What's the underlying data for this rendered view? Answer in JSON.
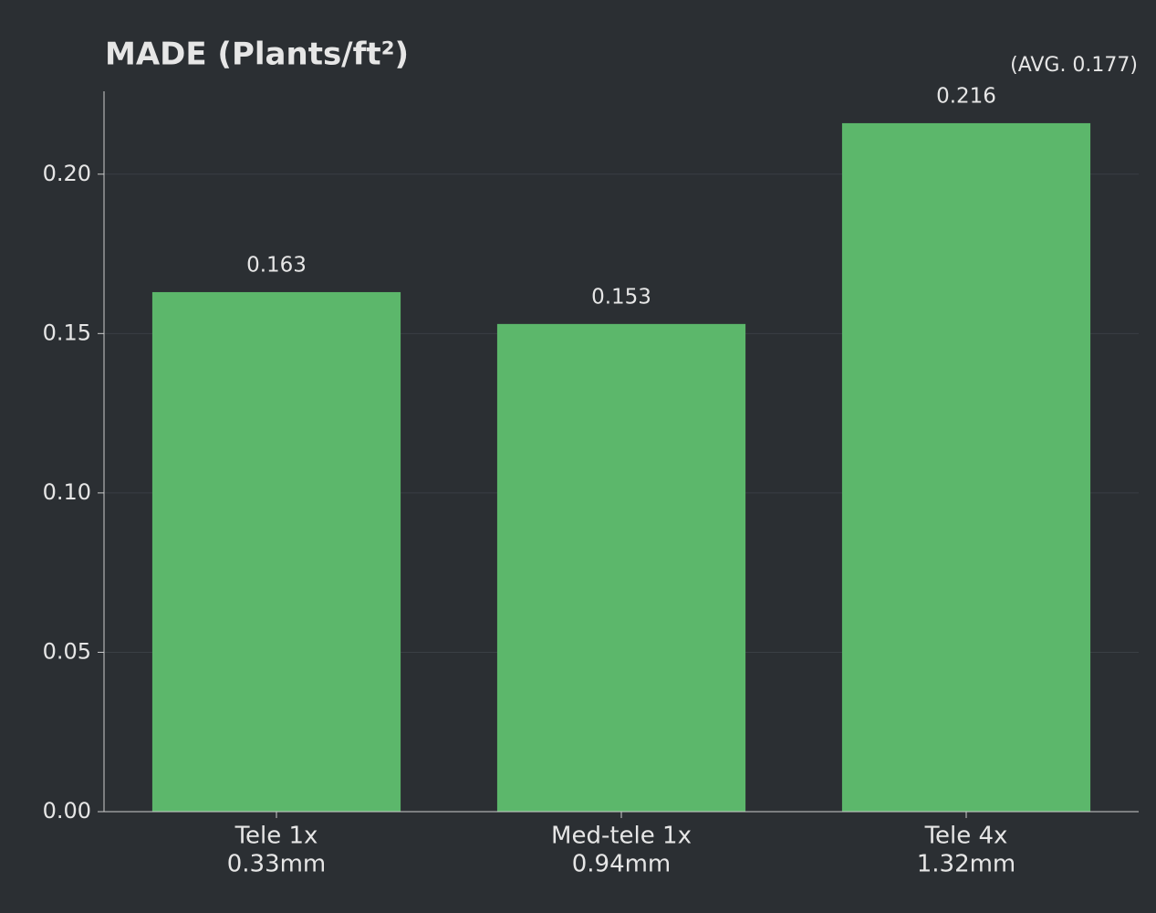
{
  "chart_data": {
    "type": "bar",
    "title": "MADE (Plants/ft²)",
    "subtitle": "(AVG. 0.177)",
    "categories": [
      [
        "Tele 1x",
        "0.33mm"
      ],
      [
        "Med-tele 1x",
        "0.94mm"
      ],
      [
        "Tele 4x",
        "1.32mm"
      ]
    ],
    "values": [
      0.163,
      0.153,
      0.216
    ],
    "color": "#5cb76b",
    "ylim": [
      0,
      0.226
    ],
    "yticks": [
      {
        "value": 0,
        "label": "0.00"
      },
      0.05,
      {
        "value": 0.1,
        "label": "0.10"
      },
      0.15,
      {
        "value": 0.2,
        "label": "0.20"
      }
    ],
    "grid": true
  }
}
